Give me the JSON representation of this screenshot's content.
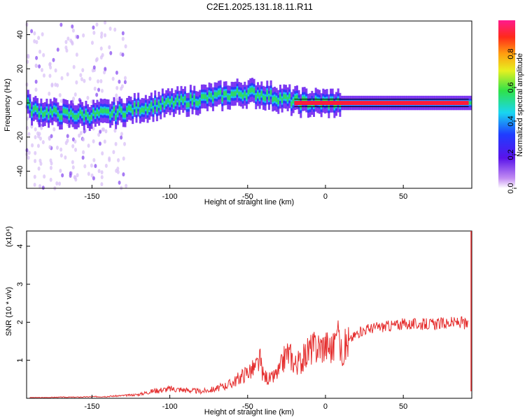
{
  "title": "C2E1.2025.131.18.11.R11",
  "x_ticks": [
    "-150",
    "-100",
    "-50",
    "0",
    "50"
  ],
  "chart_data": [
    {
      "type": "heatmap",
      "xlabel": "Height of straight line (km)",
      "ylabel": "Frequency (Hz)",
      "xlim": [
        -192,
        94
      ],
      "ylim": [
        -50,
        48
      ],
      "y_ticks": [
        "40",
        "20",
        "0",
        "-20",
        "-40"
      ],
      "colorbar_label": "Normalized spectral amplitude",
      "colorbar_ticks": [
        "0.8",
        "0.6",
        "0.4",
        "0.2",
        "0.0"
      ],
      "ridge": [
        {
          "x": -190,
          "y": -4
        },
        {
          "x": -175,
          "y": -6
        },
        {
          "x": -165,
          "y": -7
        },
        {
          "x": -150,
          "y": -7
        },
        {
          "x": -135,
          "y": -6
        },
        {
          "x": -120,
          "y": -3
        },
        {
          "x": -105,
          "y": -1
        },
        {
          "x": -90,
          "y": 1
        },
        {
          "x": -75,
          "y": 3
        },
        {
          "x": -60,
          "y": 5
        },
        {
          "x": -50,
          "y": 6
        },
        {
          "x": -40,
          "y": 5
        },
        {
          "x": -30,
          "y": 3
        },
        {
          "x": -20,
          "y": 1
        },
        {
          "x": -10,
          "y": 0
        },
        {
          "x": 0,
          "y": 0
        },
        {
          "x": 10,
          "y": 0
        },
        {
          "x": 30,
          "y": 0
        },
        {
          "x": 60,
          "y": 0
        },
        {
          "x": 92,
          "y": 0
        }
      ]
    },
    {
      "type": "line",
      "xlabel": "Height of straight line (km)",
      "ylabel": "SNR (10 * v/v)",
      "y_multiplier": "(x10⁴)",
      "xlim": [
        -192,
        94
      ],
      "ylim": [
        0,
        4.4
      ],
      "y_ticks": [
        "4",
        "3",
        "2",
        "1"
      ],
      "series": [
        {
          "color": "#e53030",
          "x": [
            -190,
            -180,
            -170,
            -160,
            -150,
            -140,
            -130,
            -120,
            -115,
            -110,
            -100,
            -90,
            -80,
            -70,
            -60,
            -55,
            -50,
            -45,
            -42,
            -40,
            -35,
            -30,
            -25,
            -22,
            -20,
            -15,
            -10,
            -5,
            0,
            5,
            8,
            10,
            15,
            20,
            25,
            30,
            40,
            50,
            60,
            70,
            80,
            88,
            92
          ],
          "y": [
            0.02,
            0.02,
            0.03,
            0.03,
            0.04,
            0.05,
            0.07,
            0.1,
            0.15,
            0.2,
            0.25,
            0.22,
            0.18,
            0.25,
            0.4,
            0.55,
            0.7,
            0.8,
            1.0,
            0.6,
            0.5,
            0.7,
            1.2,
            1.1,
            0.9,
            1.0,
            1.3,
            1.35,
            1.4,
            1.3,
            2.0,
            1.2,
            1.5,
            1.7,
            1.8,
            1.85,
            1.9,
            1.95,
            1.95,
            1.95,
            1.98,
            2.0,
            1.9
          ]
        }
      ]
    }
  ]
}
